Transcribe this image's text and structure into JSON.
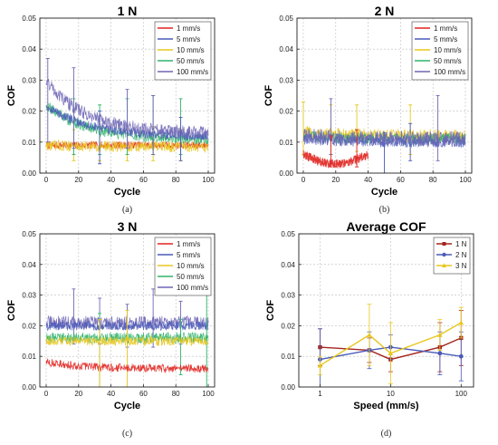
{
  "panels": [
    {
      "id": "a",
      "title": "1 N",
      "xlabel": "Cycle",
      "ylabel": "COF",
      "caption": "(a)",
      "legend": [
        {
          "name": "1 mm/s",
          "color": "#e0241f"
        },
        {
          "name": "5 mm/s",
          "color": "#4a5ab8"
        },
        {
          "name": "10 mm/s",
          "color": "#e8c71d"
        },
        {
          "name": "50 mm/s",
          "color": "#2fb36a"
        },
        {
          "name": "100 mm/s",
          "color": "#6f67b5"
        }
      ]
    },
    {
      "id": "b",
      "title": "2 N",
      "xlabel": "Cycle",
      "ylabel": "COF",
      "caption": "(b)",
      "legend": [
        {
          "name": "1 mm/s",
          "color": "#e0241f"
        },
        {
          "name": "5 mm/s",
          "color": "#4a5ab8"
        },
        {
          "name": "10 mm/s",
          "color": "#e8c71d"
        },
        {
          "name": "50 mm/s",
          "color": "#2fb36a"
        },
        {
          "name": "100 mm/s",
          "color": "#6f67b5"
        }
      ]
    },
    {
      "id": "c",
      "title": "3 N",
      "xlabel": "Cycle",
      "ylabel": "COF",
      "caption": "(c)",
      "legend": [
        {
          "name": "1 mm/s",
          "color": "#e0241f"
        },
        {
          "name": "5 mm/s",
          "color": "#4a5ab8"
        },
        {
          "name": "10 mm/s",
          "color": "#e8c71d"
        },
        {
          "name": "50 mm/s",
          "color": "#2fb36a"
        },
        {
          "name": "100 mm/s",
          "color": "#6f67b5"
        }
      ]
    },
    {
      "id": "d",
      "title": "Average COF",
      "xlabel": "Speed (mm/s)",
      "ylabel": "COF",
      "caption": "(d)",
      "legend": [
        {
          "name": "1 N",
          "color": "#a3261e"
        },
        {
          "name": "2 N",
          "color": "#4a5ab8"
        },
        {
          "name": "3 N",
          "color": "#e8c71d"
        }
      ]
    }
  ],
  "chart_data": [
    {
      "type": "line",
      "title": "1 N",
      "xlabel": "Cycle",
      "ylabel": "COF",
      "xlim": [
        0,
        100
      ],
      "ylim": [
        0,
        0.05
      ],
      "xticks": [
        0,
        20,
        40,
        60,
        80,
        100
      ],
      "yticks": [
        0.0,
        0.01,
        0.02,
        0.03,
        0.04,
        0.05
      ],
      "grid": true,
      "legend_position": "top-right",
      "series": [
        {
          "name": "1 mm/s",
          "color": "#e0241f",
          "start": 0.009,
          "end": 0.009,
          "noise": 0.0012,
          "spikes": []
        },
        {
          "name": "10 mm/s",
          "color": "#e8c71d",
          "start": 0.009,
          "end": 0.0085,
          "noise": 0.0018,
          "spikes": [
            [
              17,
              0.004,
              0.014
            ],
            [
              33,
              0.004,
              0.015
            ],
            [
              50,
              0.004,
              0.014
            ],
            [
              66,
              0.004,
              0.015
            ],
            [
              83,
              0.004,
              0.014
            ]
          ]
        },
        {
          "name": "50 mm/s",
          "color": "#2fb36a",
          "start": 0.022,
          "end": 0.011,
          "noise": 0.0018,
          "spikes": [
            [
              17,
              0.006,
              0.024
            ],
            [
              33,
              0.006,
              0.022
            ],
            [
              50,
              0.006,
              0.024
            ],
            [
              66,
              0.006,
              0.025
            ],
            [
              83,
              0.006,
              0.024
            ]
          ]
        },
        {
          "name": "5 mm/s",
          "color": "#4a5ab8",
          "start": 0.022,
          "end": 0.012,
          "noise": 0.0015,
          "spikes": [
            [
              33,
              0.003,
              0.02
            ],
            [
              83,
              0.004,
              0.018
            ]
          ]
        },
        {
          "name": "100 mm/s",
          "color": "#6f67b5",
          "start": 0.03,
          "end": 0.013,
          "noise": 0.0022,
          "spikes": [
            [
              1,
              0.01,
              0.037
            ],
            [
              17,
              0.008,
              0.034
            ],
            [
              50,
              0.008,
              0.027
            ],
            [
              66,
              0.006,
              0.025
            ]
          ]
        }
      ]
    },
    {
      "type": "line",
      "title": "2 N",
      "xlabel": "Cycle",
      "ylabel": "COF",
      "xlim": [
        0,
        100
      ],
      "ylim": [
        0,
        0.05
      ],
      "xticks": [
        0,
        20,
        40,
        60,
        80,
        100
      ],
      "yticks": [
        0.0,
        0.01,
        0.02,
        0.03,
        0.04,
        0.05
      ],
      "grid": true,
      "legend_position": "top-right",
      "series": [
        {
          "name": "10 mm/s",
          "color": "#e8c71d",
          "start": 0.013,
          "end": 0.012,
          "noise": 0.0022,
          "spikes": [
            [
              0,
              0.006,
              0.023
            ],
            [
              17,
              0.006,
              0.022
            ],
            [
              33,
              0.007,
              0.022
            ],
            [
              66,
              0.006,
              0.022
            ]
          ]
        },
        {
          "name": "50 mm/s",
          "color": "#2fb36a",
          "start": 0.012,
          "end": 0.011,
          "noise": 0.0018,
          "spikes": []
        },
        {
          "name": "5 mm/s",
          "color": "#4a5ab8",
          "start": 0.011,
          "end": 0.01,
          "noise": 0.0018,
          "spikes": [
            [
              50,
              0.0,
              0.013
            ],
            [
              66,
              0.004,
              0.016
            ]
          ]
        },
        {
          "name": "100 mm/s",
          "color": "#6f67b5",
          "start": 0.012,
          "end": 0.011,
          "noise": 0.0025,
          "spikes": [
            [
              17,
              0.006,
              0.024
            ],
            [
              83,
              0.004,
              0.025
            ]
          ]
        },
        {
          "name": "1 mm/s",
          "color": "#e0241f",
          "start": 0.006,
          "end": 0.004,
          "noise": 0.0015,
          "xmax": 40,
          "spikes": [
            [
              17,
              0.003,
              0.012
            ],
            [
              33,
              0.002,
              0.014
            ]
          ]
        }
      ]
    },
    {
      "type": "line",
      "title": "3 N",
      "xlabel": "Cycle",
      "ylabel": "COF",
      "xlim": [
        0,
        100
      ],
      "ylim": [
        0,
        0.05
      ],
      "xticks": [
        0,
        20,
        40,
        60,
        80,
        100
      ],
      "yticks": [
        0.0,
        0.01,
        0.02,
        0.03,
        0.04,
        0.05
      ],
      "grid": true,
      "legend_position": "top-right",
      "series": [
        {
          "name": "100 mm/s",
          "color": "#6f67b5",
          "start": 0.021,
          "end": 0.021,
          "noise": 0.0022,
          "spikes": [
            [
              17,
              0.014,
              0.032
            ],
            [
              33,
              0.014,
              0.029
            ],
            [
              50,
              0.013,
              0.027
            ],
            [
              66,
              0.013,
              0.032
            ],
            [
              83,
              0.014,
              0.028
            ]
          ]
        },
        {
          "name": "5 mm/s",
          "color": "#4a5ab8",
          "start": 0.02,
          "end": 0.02,
          "noise": 0.0015,
          "spikes": []
        },
        {
          "name": "50 mm/s",
          "color": "#2fb36a",
          "start": 0.016,
          "end": 0.016,
          "noise": 0.0018,
          "spikes": [
            [
              33,
              0.0,
              0.024
            ],
            [
              83,
              0.004,
              0.022
            ],
            [
              99,
              0.0,
              0.03
            ]
          ]
        },
        {
          "name": "10 mm/s",
          "color": "#e8c71d",
          "start": 0.015,
          "end": 0.015,
          "noise": 0.0015,
          "spikes": [
            [
              33,
              0.0,
              0.022
            ],
            [
              50,
              0.0,
              0.025
            ]
          ]
        },
        {
          "name": "1 mm/s",
          "color": "#e0241f",
          "start": 0.008,
          "end": 0.006,
          "noise": 0.0014,
          "spikes": []
        }
      ]
    },
    {
      "type": "line",
      "title": "Average COF",
      "xlabel": "Speed (mm/s)",
      "ylabel": "COF",
      "xscale": "log",
      "xlim": [
        0.5,
        150
      ],
      "ylim": [
        0,
        0.05
      ],
      "xticks": [
        1,
        10,
        100
      ],
      "yticks": [
        0.0,
        0.01,
        0.02,
        0.03,
        0.04,
        0.05
      ],
      "grid": true,
      "legend_position": "top-right",
      "x": [
        1,
        5,
        10,
        50,
        100
      ],
      "series": [
        {
          "name": "1 N",
          "color": "#a3261e",
          "marker": "square",
          "values": [
            0.013,
            0.012,
            0.009,
            0.013,
            0.016
          ],
          "errors": [
            0.006,
            0.004,
            0.004,
            0.008,
            0.009
          ]
        },
        {
          "name": "2 N",
          "color": "#4a5ab8",
          "marker": "circle",
          "values": [
            0.009,
            0.012,
            0.013,
            0.011,
            0.01
          ],
          "errors": [
            0.01,
            0.006,
            0.004,
            0.007,
            0.008
          ]
        },
        {
          "name": "3 N",
          "color": "#e8c71d",
          "marker": "triangle",
          "values": [
            0.007,
            0.017,
            0.011,
            0.017,
            0.021
          ],
          "errors": [
            0.003,
            0.01,
            0.01,
            0.005,
            0.005
          ]
        }
      ]
    }
  ]
}
